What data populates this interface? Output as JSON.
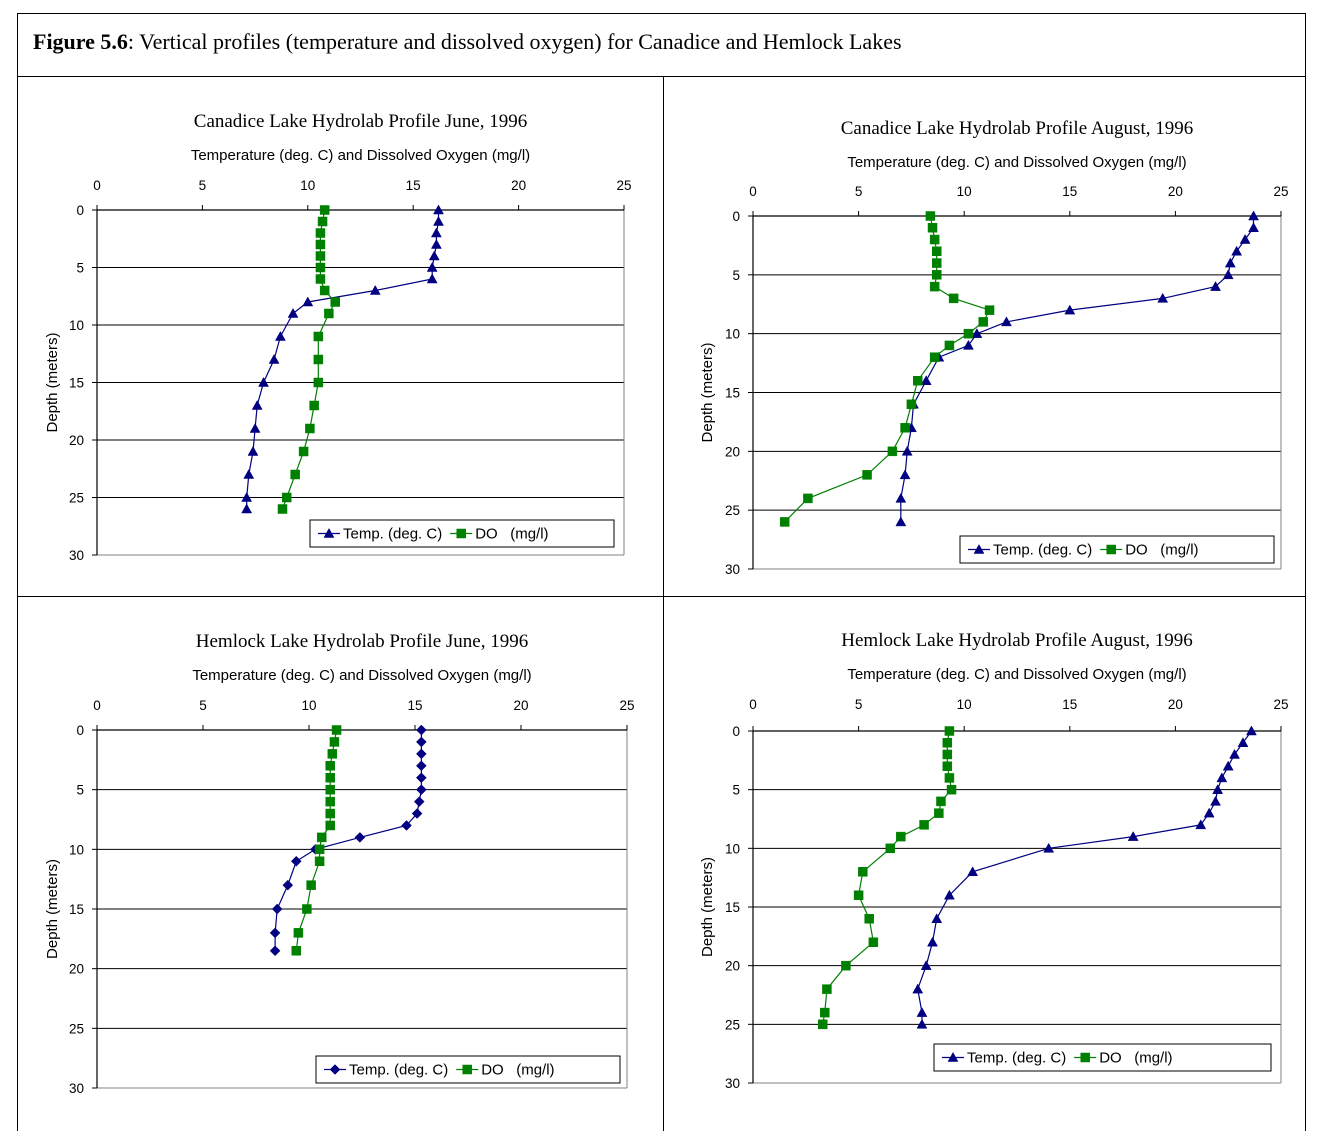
{
  "figure": {
    "label": "Figure 5.6",
    "caption": ": Vertical profiles (temperature and dissolved oxygen) for Canadice and Hemlock Lakes"
  },
  "colors": {
    "temp": "#000080",
    "do": "#008000"
  },
  "chart_data": [
    {
      "type": "line",
      "title": "Canadice Lake Hydrolab Profile June, 1996",
      "xlabel": "Temperature (deg. C) and Dissolved Oxygen (mg/l)",
      "ylabel": "Depth (meters)",
      "xlim": [
        0,
        25
      ],
      "ylim": [
        0,
        30
      ],
      "xticks": [
        0,
        5,
        10,
        15,
        20,
        25
      ],
      "yticks": [
        0,
        5,
        10,
        15,
        20,
        25,
        30
      ],
      "x_axis_position": "top",
      "y_inverted": true,
      "grid": "horizontal",
      "legend_position": "bottom-right",
      "series": [
        {
          "name": "Temp. (deg. C)",
          "marker": "triangle",
          "color": "#000080",
          "points": [
            [
              16.2,
              0
            ],
            [
              16.2,
              1
            ],
            [
              16.1,
              2
            ],
            [
              16.1,
              3
            ],
            [
              16.0,
              4
            ],
            [
              15.9,
              5
            ],
            [
              15.9,
              6
            ],
            [
              13.2,
              7
            ],
            [
              10.0,
              8
            ],
            [
              9.3,
              9
            ],
            [
              8.7,
              11
            ],
            [
              8.4,
              13
            ],
            [
              7.9,
              15
            ],
            [
              7.6,
              17
            ],
            [
              7.5,
              19
            ],
            [
              7.4,
              21
            ],
            [
              7.2,
              23
            ],
            [
              7.1,
              25
            ],
            [
              7.1,
              26
            ]
          ]
        },
        {
          "name": "DO   (mg/l)",
          "marker": "square",
          "color": "#008000",
          "points": [
            [
              10.8,
              0
            ],
            [
              10.7,
              1
            ],
            [
              10.6,
              2
            ],
            [
              10.6,
              3
            ],
            [
              10.6,
              4
            ],
            [
              10.6,
              5
            ],
            [
              10.6,
              6
            ],
            [
              10.8,
              7
            ],
            [
              11.3,
              8
            ],
            [
              11.0,
              9
            ],
            [
              10.5,
              11
            ],
            [
              10.5,
              13
            ],
            [
              10.5,
              15
            ],
            [
              10.3,
              17
            ],
            [
              10.1,
              19
            ],
            [
              9.8,
              21
            ],
            [
              9.4,
              23
            ],
            [
              9.0,
              25
            ],
            [
              8.8,
              26
            ]
          ]
        }
      ]
    },
    {
      "type": "line",
      "title": "Canadice Lake Hydrolab Profile August, 1996",
      "xlabel": "Temperature (deg. C) and Dissolved Oxygen (mg/l)",
      "ylabel": "Depth (meters)",
      "xlim": [
        0,
        25
      ],
      "ylim": [
        0,
        30
      ],
      "xticks": [
        0,
        5,
        10,
        15,
        20,
        25
      ],
      "yticks": [
        0,
        5,
        10,
        15,
        20,
        25,
        30
      ],
      "x_axis_position": "top",
      "y_inverted": true,
      "grid": "horizontal",
      "legend_position": "bottom-right",
      "series": [
        {
          "name": "Temp. (deg. C)",
          "marker": "triangle",
          "color": "#000080",
          "points": [
            [
              23.7,
              0
            ],
            [
              23.7,
              1
            ],
            [
              23.3,
              2
            ],
            [
              22.9,
              3
            ],
            [
              22.6,
              4
            ],
            [
              22.5,
              5
            ],
            [
              21.9,
              6
            ],
            [
              19.4,
              7
            ],
            [
              15.0,
              8
            ],
            [
              12.0,
              9
            ],
            [
              10.6,
              10
            ],
            [
              10.2,
              11
            ],
            [
              8.8,
              12
            ],
            [
              8.2,
              14
            ],
            [
              7.6,
              16
            ],
            [
              7.5,
              18
            ],
            [
              7.3,
              20
            ],
            [
              7.2,
              22
            ],
            [
              7.0,
              24
            ],
            [
              7.0,
              26
            ]
          ]
        },
        {
          "name": "DO   (mg/l)",
          "marker": "square",
          "color": "#008000",
          "points": [
            [
              8.4,
              0
            ],
            [
              8.5,
              1
            ],
            [
              8.6,
              2
            ],
            [
              8.7,
              3
            ],
            [
              8.7,
              4
            ],
            [
              8.7,
              5
            ],
            [
              8.6,
              6
            ],
            [
              9.5,
              7
            ],
            [
              11.2,
              8
            ],
            [
              10.9,
              9
            ],
            [
              10.2,
              10
            ],
            [
              9.3,
              11
            ],
            [
              8.6,
              12
            ],
            [
              7.8,
              14
            ],
            [
              7.5,
              16
            ],
            [
              7.2,
              18
            ],
            [
              6.6,
              20
            ],
            [
              5.4,
              22
            ],
            [
              2.6,
              24
            ],
            [
              1.5,
              26
            ]
          ]
        }
      ]
    },
    {
      "type": "line",
      "title": "Hemlock Lake Hydrolab Profile June, 1996",
      "xlabel": "Temperature (deg. C) and Dissolved Oxygen (mg/l)",
      "ylabel": "Depth (meters)",
      "xlim": [
        0,
        25
      ],
      "ylim": [
        0,
        30
      ],
      "xticks": [
        0,
        5,
        10,
        15,
        20,
        25
      ],
      "yticks": [
        0,
        5,
        10,
        15,
        20,
        25,
        30
      ],
      "x_axis_position": "top",
      "y_inverted": true,
      "grid": "horizontal",
      "legend_position": "bottom-right",
      "series": [
        {
          "name": "Temp. (deg. C)",
          "marker": "diamond",
          "color": "#000080",
          "points": [
            [
              15.3,
              0
            ],
            [
              15.3,
              1
            ],
            [
              15.3,
              2
            ],
            [
              15.3,
              3
            ],
            [
              15.3,
              4
            ],
            [
              15.3,
              5
            ],
            [
              15.2,
              6
            ],
            [
              15.1,
              7
            ],
            [
              14.6,
              8
            ],
            [
              12.4,
              9
            ],
            [
              10.3,
              10
            ],
            [
              9.4,
              11
            ],
            [
              9.0,
              13
            ],
            [
              8.5,
              15
            ],
            [
              8.4,
              17
            ],
            [
              8.4,
              18.5
            ]
          ]
        },
        {
          "name": "DO   (mg/l)",
          "marker": "square",
          "color": "#008000",
          "points": [
            [
              11.3,
              0
            ],
            [
              11.2,
              1
            ],
            [
              11.1,
              2
            ],
            [
              11.0,
              3
            ],
            [
              11.0,
              4
            ],
            [
              11.0,
              5
            ],
            [
              11.0,
              6
            ],
            [
              11.0,
              7
            ],
            [
              11.0,
              8
            ],
            [
              10.6,
              9
            ],
            [
              10.5,
              10
            ],
            [
              10.5,
              11
            ],
            [
              10.1,
              13
            ],
            [
              9.9,
              15
            ],
            [
              9.5,
              17
            ],
            [
              9.4,
              18.5
            ]
          ]
        }
      ]
    },
    {
      "type": "line",
      "title": "Hemlock Lake Hydrolab Profile August, 1996",
      "xlabel": "Temperature (deg. C) and Dissolved Oxygen (mg/l)",
      "ylabel": "Depth (meters)",
      "xlim": [
        0,
        25
      ],
      "ylim": [
        0,
        30
      ],
      "xticks": [
        0,
        5,
        10,
        15,
        20,
        25
      ],
      "yticks": [
        0,
        5,
        10,
        15,
        20,
        25,
        30
      ],
      "x_axis_position": "top",
      "y_inverted": true,
      "grid": "horizontal",
      "legend_position": "bottom-right",
      "series": [
        {
          "name": "Temp. (deg. C)",
          "marker": "triangle",
          "color": "#000080",
          "points": [
            [
              23.6,
              0
            ],
            [
              23.2,
              1
            ],
            [
              22.8,
              2
            ],
            [
              22.5,
              3
            ],
            [
              22.2,
              4
            ],
            [
              22.0,
              5
            ],
            [
              21.9,
              6
            ],
            [
              21.6,
              7
            ],
            [
              21.2,
              8
            ],
            [
              18.0,
              9
            ],
            [
              14.0,
              10
            ],
            [
              10.4,
              12
            ],
            [
              9.3,
              14
            ],
            [
              8.7,
              16
            ],
            [
              8.5,
              18
            ],
            [
              8.2,
              20
            ],
            [
              7.8,
              22
            ],
            [
              8.0,
              24
            ],
            [
              8.0,
              25
            ]
          ]
        },
        {
          "name": "DO   (mg/l)",
          "marker": "square",
          "color": "#008000",
          "points": [
            [
              9.3,
              0
            ],
            [
              9.2,
              1
            ],
            [
              9.2,
              2
            ],
            [
              9.2,
              3
            ],
            [
              9.3,
              4
            ],
            [
              9.4,
              5
            ],
            [
              8.9,
              6
            ],
            [
              8.8,
              7
            ],
            [
              8.1,
              8
            ],
            [
              7.0,
              9
            ],
            [
              6.5,
              10
            ],
            [
              5.2,
              12
            ],
            [
              5.0,
              14
            ],
            [
              5.5,
              16
            ],
            [
              5.7,
              18
            ],
            [
              4.4,
              20
            ],
            [
              3.5,
              22
            ],
            [
              3.4,
              24
            ],
            [
              3.3,
              25
            ]
          ]
        }
      ]
    }
  ]
}
